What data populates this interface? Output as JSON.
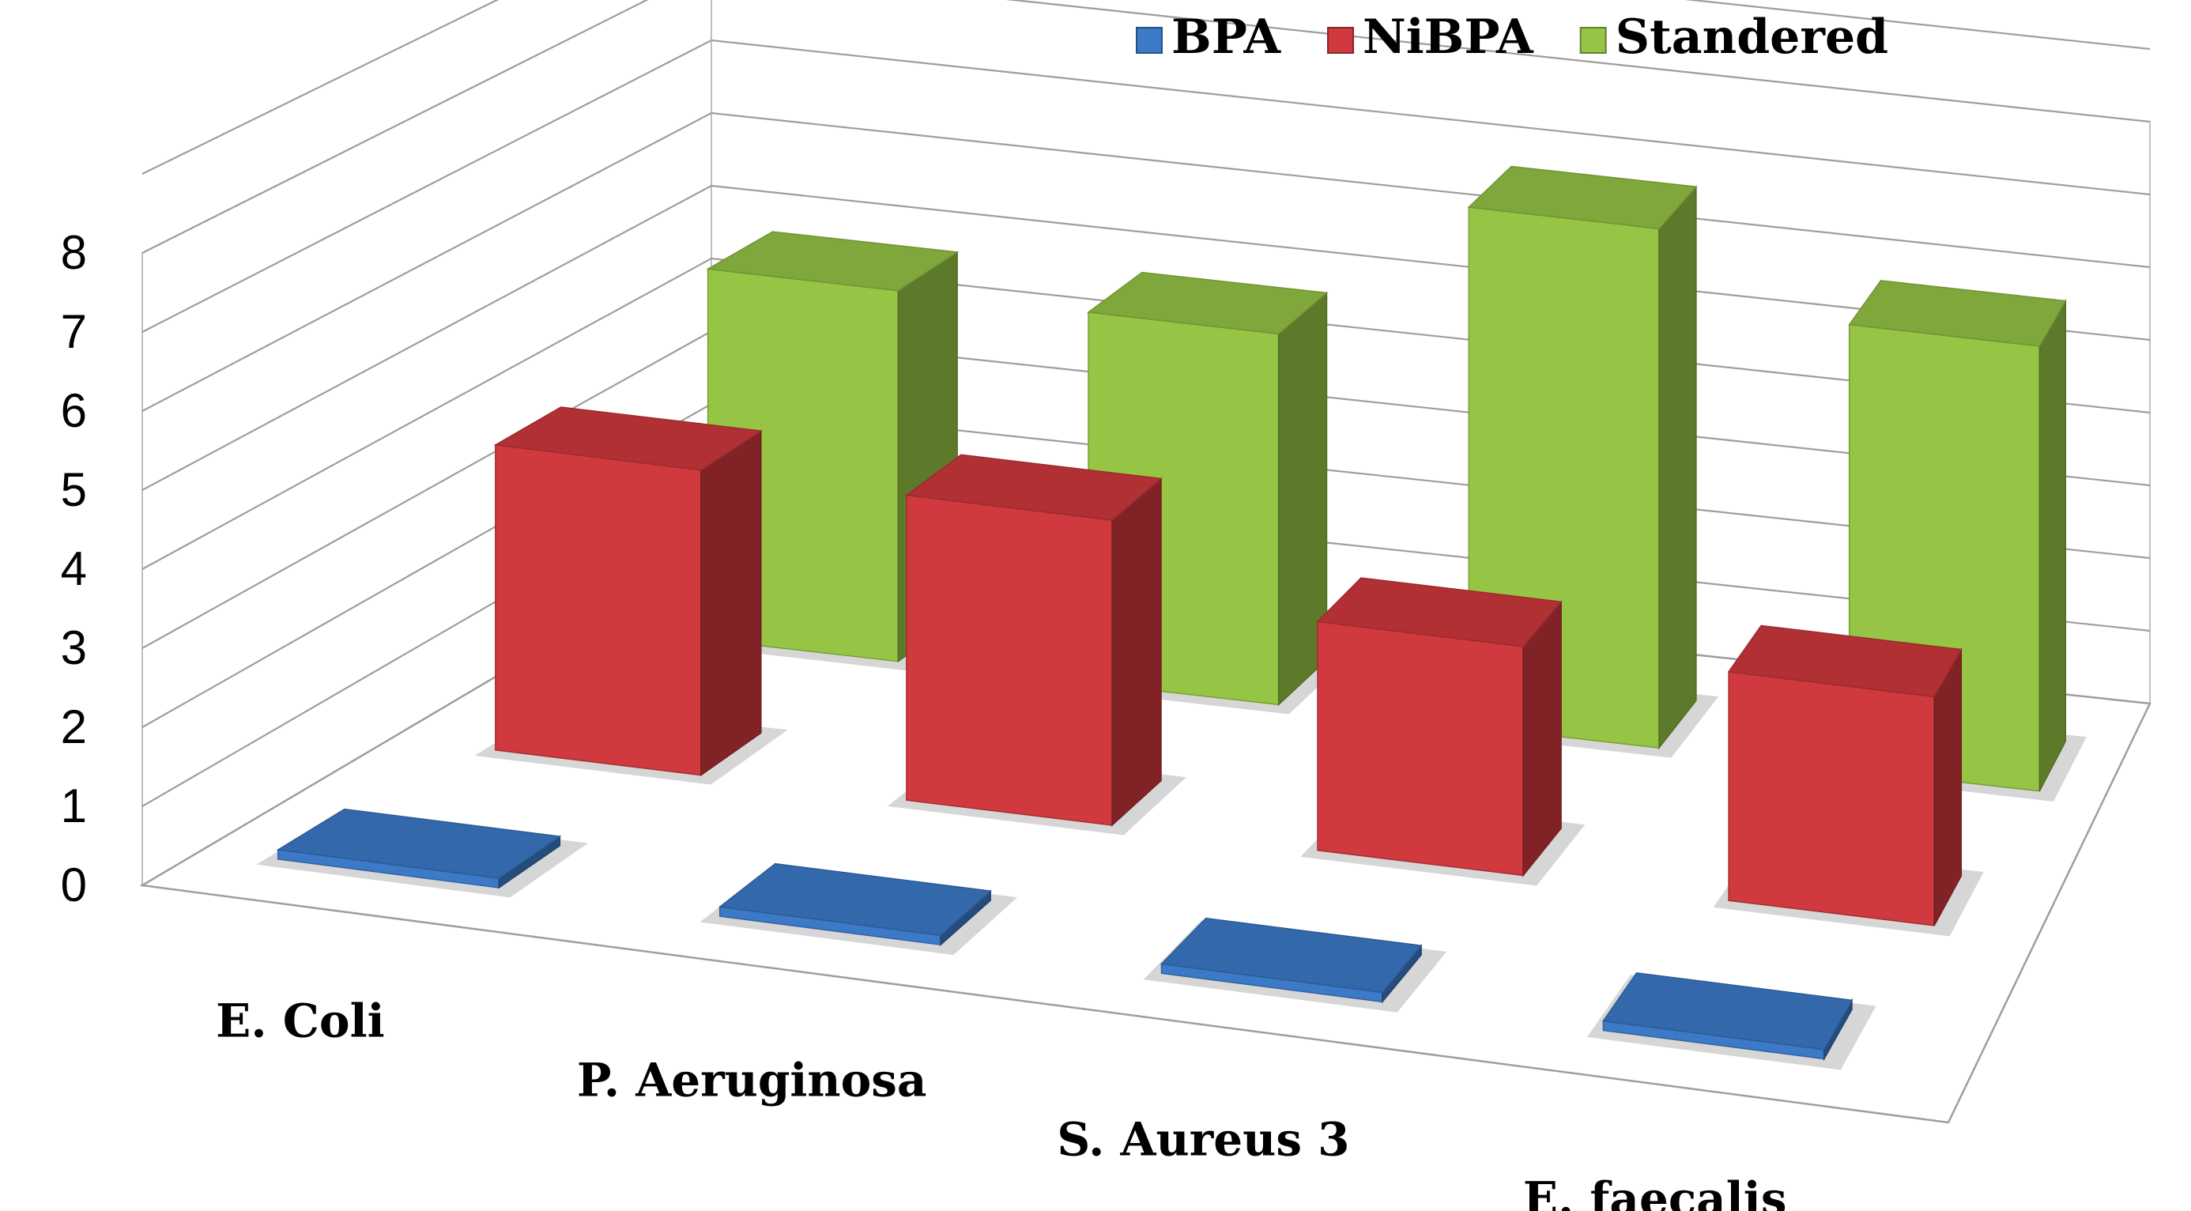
{
  "chart_data": {
    "type": "bar",
    "style": "3d-clustered-columns",
    "title": "",
    "xlabel": "",
    "ylabel": "",
    "ylim": [
      0,
      8
    ],
    "yticks": [
      "0",
      "1",
      "2",
      "3",
      "4",
      "5",
      "6",
      "7",
      "8"
    ],
    "grid": true,
    "legend_position": "top-right",
    "categories": [
      "E. Coli",
      "P. Aeruginosa",
      "S. Aureus 3",
      "E. faecalis"
    ],
    "series": [
      {
        "name": "BPA",
        "values": [
          0,
          0,
          0,
          0
        ],
        "color": "#3c7ac8"
      },
      {
        "name": "NiBPA",
        "values": [
          4,
          4,
          3,
          3
        ],
        "color": "#d0393d"
      },
      {
        "name": "Standered",
        "values": [
          5,
          5,
          7,
          6
        ],
        "color": "#96c545"
      }
    ]
  }
}
